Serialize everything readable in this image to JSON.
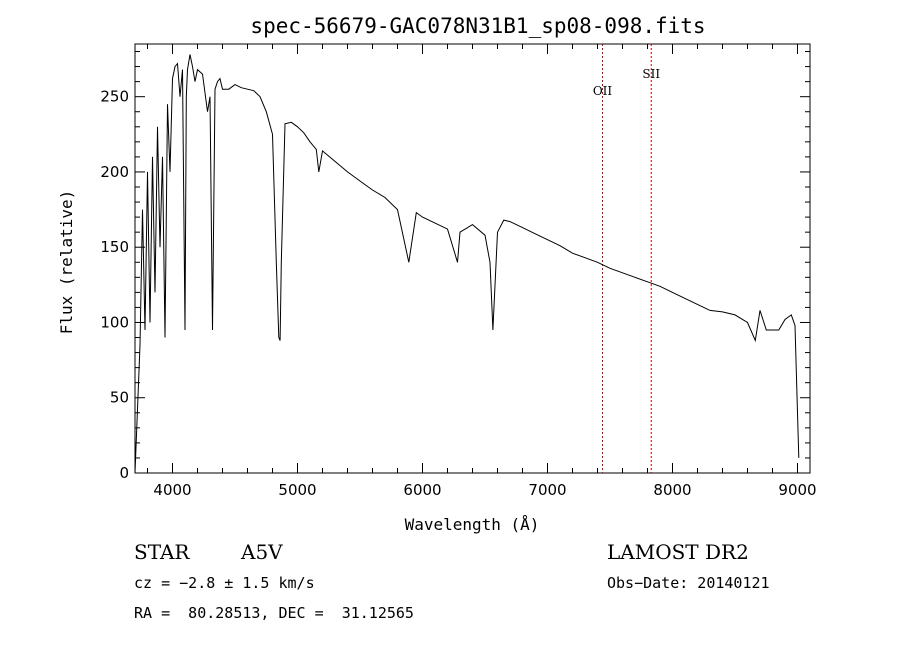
{
  "chart_data": {
    "type": "line",
    "title": "spec-56679-GAC078N31B1_sp08-098.fits",
    "xlabel": "Wavelength (Å)",
    "ylabel": "Flux (relative)",
    "xlim": [
      3700,
      9100
    ],
    "ylim": [
      0,
      285
    ],
    "x_ticks": [
      4000,
      5000,
      6000,
      7000,
      8000,
      9000
    ],
    "y_ticks": [
      0,
      50,
      100,
      150,
      200,
      250
    ],
    "x_tick_labels": [
      "4000",
      "5000",
      "6000",
      "7000",
      "8000",
      "9000"
    ],
    "y_tick_labels": [
      "0",
      "50",
      "100",
      "150",
      "200",
      "250"
    ],
    "grid": false,
    "series": [
      {
        "x": [
          3700,
          3740,
          3760,
          3780,
          3800,
          3820,
          3840,
          3860,
          3880,
          3900,
          3920,
          3940,
          3960,
          3980,
          4000,
          4020,
          4040,
          4060,
          4080,
          4100,
          4110,
          4120,
          4140,
          4160,
          4180,
          4200,
          4240,
          4280,
          4300,
          4320,
          4340,
          4360,
          4380,
          4400,
          4450,
          4500,
          4550,
          4600,
          4650,
          4700,
          4750,
          4800,
          4830,
          4850,
          4861,
          4870,
          4900,
          4950,
          5000,
          5050,
          5100,
          5150,
          5170,
          5200,
          5300,
          5400,
          5500,
          5600,
          5700,
          5800,
          5890,
          5950,
          6000,
          6100,
          6200,
          6280,
          6300,
          6400,
          6500,
          6540,
          6563,
          6600,
          6650,
          6700,
          6800,
          6900,
          7000,
          7100,
          7200,
          7300,
          7400,
          7500,
          7600,
          7700,
          7800,
          7900,
          8000,
          8100,
          8200,
          8300,
          8400,
          8500,
          8600,
          8662,
          8700,
          8750,
          8850,
          8900,
          8950,
          8980,
          9000,
          9010
        ],
        "y": [
          0,
          85,
          175,
          95,
          200,
          100,
          210,
          120,
          230,
          150,
          210,
          90,
          245,
          200,
          262,
          270,
          272,
          250,
          268,
          95,
          250,
          268,
          278,
          270,
          260,
          268,
          265,
          240,
          250,
          95,
          255,
          260,
          262,
          255,
          255,
          258,
          256,
          255,
          254,
          250,
          240,
          225,
          140,
          90,
          88,
          140,
          232,
          233,
          230,
          226,
          220,
          215,
          200,
          214,
          207,
          200,
          194,
          188,
          183,
          175,
          140,
          173,
          170,
          166,
          162,
          140,
          160,
          165,
          158,
          140,
          95,
          160,
          168,
          167,
          163,
          159,
          155,
          151,
          146,
          143,
          140,
          136,
          133,
          130,
          127,
          124,
          120,
          116,
          112,
          108,
          107,
          105,
          100,
          88,
          108,
          95,
          95,
          102,
          105,
          98,
          40,
          10
        ],
        "color": "#000000"
      }
    ],
    "markers": [
      {
        "label": "OII",
        "x": 7440,
        "color": "#cc0000"
      },
      {
        "label": "SII",
        "x": 7830,
        "color": "#cc0000"
      }
    ]
  },
  "info": {
    "object_type": "STAR",
    "subclass": "A5V",
    "survey": "LAMOST DR2",
    "cz": "cz = −2.8 ± 1.5 km/s",
    "obs_date": "Obs−Date: 20140121",
    "radec": "RA =  80.28513, DEC =  31.12565"
  }
}
